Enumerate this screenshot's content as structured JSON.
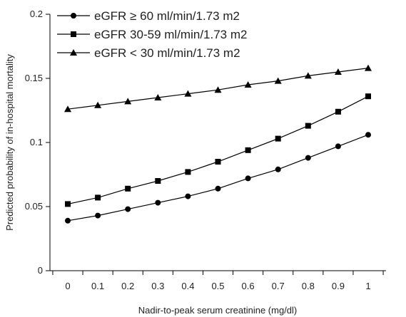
{
  "chart_data": {
    "type": "line",
    "title": "",
    "xlabel": "Nadir-to-peak serum creatinine (mg/dl)",
    "ylabel": "Predicted probability of in-hospital mortality",
    "x": [
      0,
      0.1,
      0.2,
      0.3,
      0.4,
      0.5,
      0.6,
      0.7,
      0.8,
      0.9,
      1
    ],
    "x_tick_labels": [
      "0",
      "0.1",
      "0.2",
      "0.3",
      "0.4",
      "0.5",
      "0.6",
      "0.7",
      "0.8",
      "0.9",
      "1"
    ],
    "y_tick_values": [
      0,
      0.05,
      0.1,
      0.15,
      0.2
    ],
    "y_tick_labels": [
      "0",
      "0.05",
      "0.1",
      "0.15",
      "0.2"
    ],
    "xlim": [
      0,
      1
    ],
    "ylim": [
      0,
      0.2
    ],
    "grid": false,
    "legend_position": "top-left",
    "series": [
      {
        "name": "eGFR ≥ 60 ml/min/1.73 m2",
        "marker": "circle",
        "values": [
          0.039,
          0.043,
          0.048,
          0.053,
          0.058,
          0.064,
          0.072,
          0.079,
          0.088,
          0.097,
          0.106
        ]
      },
      {
        "name": "eGFR 30-59 ml/min/1.73 m2",
        "marker": "square",
        "values": [
          0.052,
          0.057,
          0.064,
          0.07,
          0.077,
          0.085,
          0.094,
          0.103,
          0.113,
          0.124,
          0.136
        ]
      },
      {
        "name": "eGFR < 30 ml/min/1.73 m2",
        "marker": "triangle",
        "values": [
          0.126,
          0.129,
          0.132,
          0.135,
          0.138,
          0.141,
          0.145,
          0.148,
          0.152,
          0.155,
          0.158
        ]
      }
    ],
    "line_color": "#000000"
  }
}
